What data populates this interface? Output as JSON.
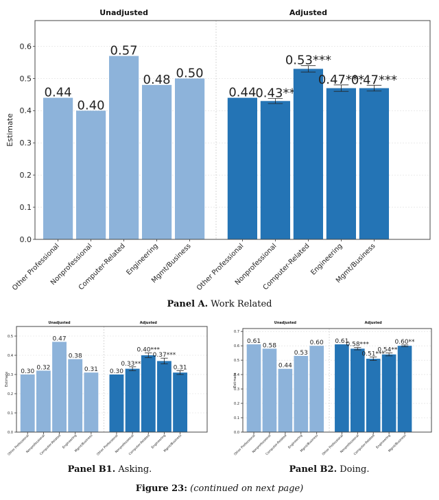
{
  "figure": {
    "label": "Figure 23:",
    "note": "(continued on next page)"
  },
  "captions": {
    "panelA": {
      "label": "Panel A.",
      "text": " Work Related"
    },
    "panelB1": {
      "label": "Panel B1.",
      "text": " Asking."
    },
    "panelB2": {
      "label": "Panel B2.",
      "text": " Doing."
    }
  },
  "colors": {
    "unadjusted": "#8db3da",
    "adjusted": "#2474b5",
    "axis": "#333333",
    "grid": "#dddddd"
  },
  "chart_data": [
    {
      "id": "panelA",
      "type": "bar",
      "title_left": "Unadjusted",
      "title_right": "Adjusted",
      "ylabel": "Estimate",
      "ylim": [
        0,
        0.68
      ],
      "yticks": [
        0.0,
        0.1,
        0.2,
        0.3,
        0.4,
        0.5,
        0.6
      ],
      "grid": true,
      "categories": [
        "Other Professional",
        "Nonprofessional",
        "Computer-Related",
        "Engineering",
        "Mgmt/Business"
      ],
      "series": [
        {
          "name": "Unadjusted",
          "values": [
            0.44,
            0.4,
            0.57,
            0.48,
            0.5
          ],
          "labels": [
            "0.44",
            "0.40",
            "0.57",
            "0.48",
            "0.50"
          ],
          "errors": [
            0,
            0,
            0,
            0,
            0
          ]
        },
        {
          "name": "Adjusted",
          "values": [
            0.44,
            0.43,
            0.53,
            0.47,
            0.47
          ],
          "labels": [
            "0.44",
            "0.43**",
            "0.53***",
            "0.47***",
            "0.47***"
          ],
          "errors": [
            0,
            0.008,
            0.01,
            0.01,
            0.009
          ]
        }
      ]
    },
    {
      "id": "panelB1",
      "type": "bar",
      "title_left": "Unadjusted",
      "title_right": "Adjusted",
      "ylabel": "Estimate",
      "ylim": [
        0,
        0.55
      ],
      "yticks": [
        0.0,
        0.1,
        0.2,
        0.3,
        0.4,
        0.5
      ],
      "grid": true,
      "categories": [
        "Other Professional",
        "Nonprofessional",
        "Computer-Related",
        "Engineering",
        "Mgmt/Business"
      ],
      "series": [
        {
          "name": "Unadjusted",
          "values": [
            0.3,
            0.32,
            0.47,
            0.38,
            0.31
          ],
          "labels": [
            "0.30",
            "0.32",
            "0.47",
            "0.38",
            "0.31"
          ],
          "errors": [
            0,
            0,
            0,
            0,
            0
          ]
        },
        {
          "name": "Adjusted",
          "values": [
            0.3,
            0.33,
            0.4,
            0.37,
            0.31
          ],
          "labels": [
            "0.30",
            "0.33***",
            "0.40***",
            "0.37***",
            "0.31"
          ],
          "errors": [
            0,
            0.01,
            0.012,
            0.015,
            0.01
          ]
        }
      ]
    },
    {
      "id": "panelB2",
      "type": "bar",
      "title_left": "Unadjusted",
      "title_right": "Adjusted",
      "ylabel": "Estimate",
      "ylim": [
        0,
        0.72
      ],
      "yticks": [
        0.0,
        0.1,
        0.2,
        0.3,
        0.4,
        0.5,
        0.6,
        0.7
      ],
      "grid": true,
      "categories": [
        "Other Professional",
        "Nonprofessional",
        "Computer-Related",
        "Engineering",
        "Mgmt/Business"
      ],
      "series": [
        {
          "name": "Unadjusted",
          "values": [
            0.61,
            0.58,
            0.44,
            0.53,
            0.6
          ],
          "labels": [
            "0.61",
            "0.58",
            "0.44",
            "0.53",
            "0.60"
          ],
          "errors": [
            0,
            0,
            0,
            0,
            0
          ]
        },
        {
          "name": "Adjusted",
          "values": [
            0.61,
            0.58,
            0.51,
            0.54,
            0.6
          ],
          "labels": [
            "0.61",
            "0.58***",
            "0.51***",
            "0.54***",
            "0.60**"
          ],
          "errors": [
            0,
            0.008,
            0.012,
            0.01,
            0.006
          ]
        }
      ]
    }
  ]
}
